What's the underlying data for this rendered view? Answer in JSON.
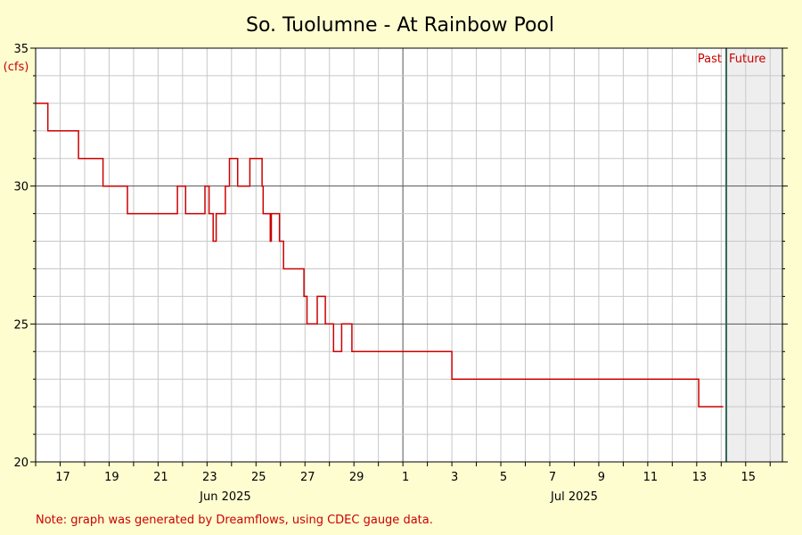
{
  "chart_data": {
    "type": "line",
    "title": "So. Tuolumne - At Rainbow Pool",
    "ylabel": "(cfs)",
    "ylim": [
      20,
      35
    ],
    "yticks": [
      "20",
      "25",
      "30",
      "35"
    ],
    "x_range": [
      "2025-06-16",
      "2025-07-16 12:00"
    ],
    "xticks": [
      "17",
      "19",
      "21",
      "23",
      "25",
      "27",
      "29",
      "1",
      "3",
      "5",
      "7",
      "9",
      "11",
      "13",
      "15"
    ],
    "month_labels": [
      "Jun 2025",
      "Jul 2025"
    ],
    "past_label": "Past",
    "future_label": "Future",
    "now": "2025-07-14 05:00",
    "note": "Note: graph was generated by Dreamflows, using CDEC gauge data.",
    "colors": {
      "line": "#cc0000",
      "now_line": "#336655",
      "future_fill": "#eeeeee"
    },
    "series": [
      {
        "x": [
          "2025-06-16 00:00",
          "2025-06-16 12:00",
          "2025-06-16 12:00",
          "2025-06-17 18:00",
          "2025-06-17 18:00",
          "2025-06-18 18:00",
          "2025-06-18 18:00",
          "2025-06-19 18:00",
          "2025-06-19 18:00",
          "2025-06-21 19:00",
          "2025-06-21 19:00",
          "2025-06-22 03:00",
          "2025-06-22 03:00",
          "2025-06-22 22:00",
          "2025-06-22 22:00",
          "2025-06-23 02:00",
          "2025-06-23 02:00",
          "2025-06-23 06:00",
          "2025-06-23 06:00",
          "2025-06-23 09:00",
          "2025-06-23 09:00",
          "2025-06-23 18:00",
          "2025-06-23 18:00",
          "2025-06-23 22:00",
          "2025-06-23 22:00",
          "2025-06-24 06:00",
          "2025-06-24 06:00",
          "2025-06-24 18:00",
          "2025-06-24 18:00",
          "2025-06-25 06:00",
          "2025-06-25 06:00",
          "2025-06-25 07:00",
          "2025-06-25 07:00",
          "2025-06-25 14:00",
          "2025-06-25 14:00",
          "2025-06-25 15:00",
          "2025-06-25 15:00",
          "2025-06-25 23:00",
          "2025-06-25 23:00",
          "2025-06-26 03:00",
          "2025-06-26 03:00",
          "2025-06-26 23:00",
          "2025-06-26 23:00",
          "2025-06-27 02:00",
          "2025-06-27 02:00",
          "2025-06-27 12:00",
          "2025-06-27 12:00",
          "2025-06-27 20:00",
          "2025-06-27 20:00",
          "2025-06-28 04:00",
          "2025-06-28 04:00",
          "2025-06-28 12:00",
          "2025-06-28 12:00",
          "2025-06-28 22:00",
          "2025-06-28 22:00",
          "2025-07-03 00:00",
          "2025-07-03 00:00",
          "2025-07-13 02:00",
          "2025-07-13 02:00",
          "2025-07-14 02:00"
        ],
        "y": [
          33,
          33,
          32,
          32,
          31,
          31,
          30,
          30,
          29,
          29,
          30,
          30,
          29,
          29,
          30,
          30,
          29,
          29,
          28,
          28,
          29,
          29,
          30,
          30,
          31,
          31,
          30,
          30,
          31,
          31,
          30,
          30,
          29,
          29,
          28,
          28,
          29,
          29,
          28,
          28,
          27,
          27,
          26,
          26,
          25,
          25,
          26,
          26,
          25,
          25,
          24,
          24,
          25,
          25,
          24,
          24,
          23,
          23,
          22,
          22
        ]
      }
    ]
  }
}
